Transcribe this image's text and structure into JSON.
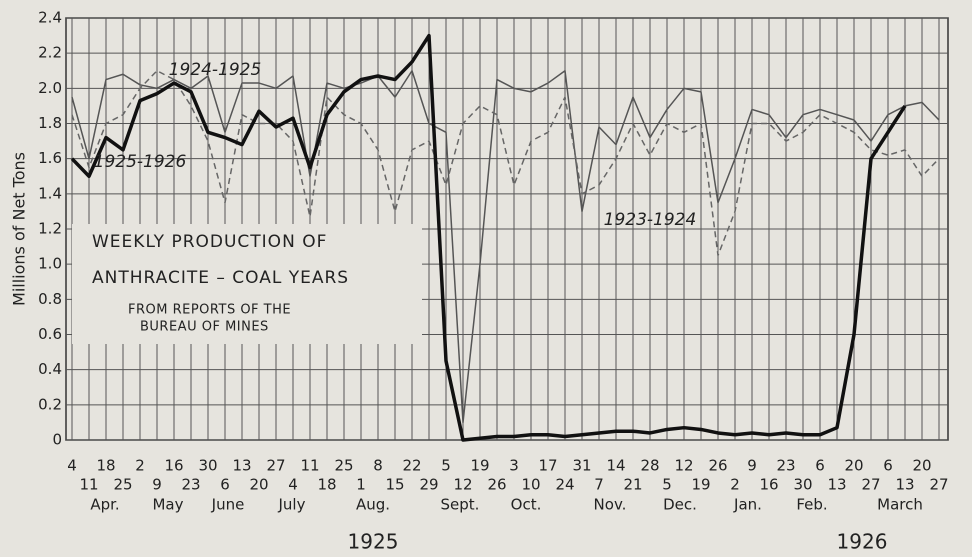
{
  "chart_data": {
    "type": "line",
    "title_lines": [
      "WEEKLY PRODUCTION OF",
      "ANTHRACITE – COAL YEARS"
    ],
    "subtitle_lines": [
      "FROM REPORTS OF THE",
      "BUREAU OF MINES"
    ],
    "y_label": "Millions of Net Tons",
    "months": [
      "Apr.",
      "May",
      "June",
      "July",
      "Aug.",
      "Sept.",
      "Oct.",
      "Nov.",
      "Dec.",
      "Jan.",
      "Feb.",
      "March"
    ],
    "years": [
      "1925",
      "1926"
    ],
    "categories": [
      "4",
      "11",
      "18",
      "25",
      "2",
      "9",
      "16",
      "23",
      "30",
      "6",
      "13",
      "20",
      "27",
      "4",
      "11",
      "18",
      "25",
      "1",
      "8",
      "15",
      "22",
      "29",
      "5",
      "12",
      "19",
      "26",
      "3",
      "10",
      "17",
      "24",
      "31",
      "7",
      "14",
      "21",
      "28",
      "5",
      "12",
      "19",
      "26",
      "2",
      "9",
      "16",
      "23",
      "30",
      "6",
      "13",
      "20",
      "27",
      "6",
      "13",
      "20",
      "27"
    ],
    "series": [
      {
        "name": "1923-1924",
        "color": "#555555",
        "style": "solid",
        "values": [
          1.95,
          1.6,
          2.05,
          2.08,
          2.02,
          2.0,
          2.05,
          2.0,
          2.07,
          1.75,
          2.03,
          2.03,
          2.0,
          2.07,
          1.5,
          2.03,
          2.0,
          2.03,
          2.07,
          1.95,
          2.1,
          1.8,
          1.75,
          0.1,
          1.0,
          2.05,
          2.0,
          1.98,
          2.03,
          2.1,
          1.3,
          1.78,
          1.68,
          1.95,
          1.72,
          1.88,
          2.0,
          1.98,
          1.35,
          1.6,
          1.88,
          1.85,
          1.72,
          1.85,
          1.88,
          1.85,
          1.82,
          1.7,
          1.85,
          1.9,
          1.92,
          1.82
        ]
      },
      {
        "name": "1924-1925",
        "color": "#666666",
        "style": "dashed",
        "values": [
          1.85,
          1.55,
          1.8,
          1.85,
          2.0,
          2.1,
          2.05,
          1.9,
          1.7,
          1.35,
          1.85,
          1.8,
          1.8,
          1.7,
          1.27,
          1.95,
          1.85,
          1.8,
          1.65,
          1.3,
          1.65,
          1.7,
          1.45,
          1.8,
          1.9,
          1.85,
          1.45,
          1.7,
          1.75,
          1.95,
          1.4,
          1.45,
          1.6,
          1.8,
          1.62,
          1.8,
          1.75,
          1.8,
          1.05,
          1.3,
          1.8,
          1.8,
          1.7,
          1.75,
          1.85,
          1.8,
          1.75,
          1.65,
          1.62,
          1.65,
          1.5,
          1.6
        ]
      },
      {
        "name": "1925-1926",
        "color": "#111111",
        "style": "thick",
        "values": [
          1.6,
          1.5,
          1.72,
          1.65,
          1.93,
          1.97,
          2.03,
          1.98,
          1.75,
          1.72,
          1.68,
          1.87,
          1.78,
          1.83,
          1.55,
          1.85,
          1.98,
          2.05,
          2.07,
          2.05,
          2.15,
          2.3,
          0.45,
          0.0,
          0.01,
          0.02,
          0.02,
          0.03,
          0.03,
          0.02,
          0.03,
          0.04,
          0.05,
          0.05,
          0.04,
          0.06,
          0.07,
          0.06,
          0.04,
          0.03,
          0.04,
          0.03,
          0.04,
          0.03,
          0.03,
          0.07,
          0.6,
          1.6,
          1.75,
          1.9,
          null,
          null
        ]
      }
    ],
    "ylim": [
      0,
      2.4
    ],
    "yticks": [
      0,
      0.2,
      0.4,
      0.6,
      0.8,
      {
        "value": 1.0,
        "label": "1.0"
      },
      1.2,
      1.4,
      1.6,
      1.8,
      {
        "value": 2.0,
        "label": "2.0"
      },
      2.2,
      2.4
    ],
    "grid": true
  }
}
